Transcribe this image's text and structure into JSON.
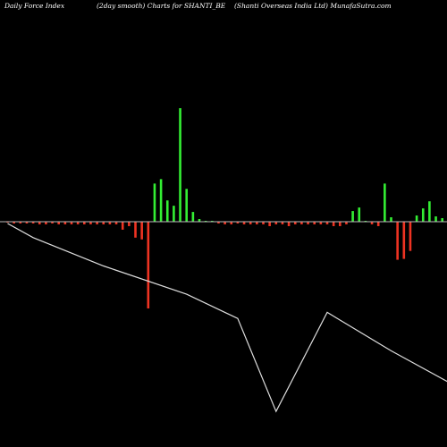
{
  "header": {
    "left": "Daily Force  Index",
    "center": "(2day smooth) Charts for SHANTI_BE",
    "right": "(Shanti  Overseas India  Ltd) MunafaSutra.com"
  },
  "colors": {
    "background": "#000000",
    "positive": "#33ee33",
    "negative": "#ee3322",
    "zero_line": "#bbbbbb",
    "price_line": "#dddddd"
  },
  "chart_data": {
    "type": "bar",
    "title": "Daily Force Index (2day smooth)",
    "xlabel": "",
    "ylabel": "",
    "ylim": [
      -100,
      128
    ],
    "grid": false,
    "legend": "none",
    "force_index": [
      -1,
      -2,
      -2,
      -2,
      -2,
      -3,
      -3,
      -2,
      -3,
      -3,
      -3,
      -3,
      -3,
      -3,
      -3,
      -3,
      -3,
      -3,
      -9,
      -5,
      -18,
      -20,
      -98,
      43,
      48,
      24,
      18,
      128,
      37,
      11,
      3,
      1,
      0,
      -2,
      -3,
      -3,
      -2,
      -3,
      -3,
      -3,
      -3,
      -5,
      -3,
      -3,
      -5,
      -3,
      -3,
      -3,
      -3,
      -3,
      -3,
      -5,
      -5,
      -3,
      12,
      16,
      0,
      -3,
      -5,
      43,
      5,
      -43,
      -42,
      -33,
      7,
      15,
      23,
      6,
      4
    ],
    "price_line": {
      "series_name": "price",
      "points": [
        [
          0,
          100
        ],
        [
          4,
          93
        ],
        [
          15,
          79
        ],
        [
          28,
          65
        ],
        [
          36,
          53
        ],
        [
          42,
          7
        ],
        [
          50,
          56
        ],
        [
          60,
          37
        ],
        [
          75,
          11
        ],
        [
          83,
          0
        ]
      ]
    }
  }
}
